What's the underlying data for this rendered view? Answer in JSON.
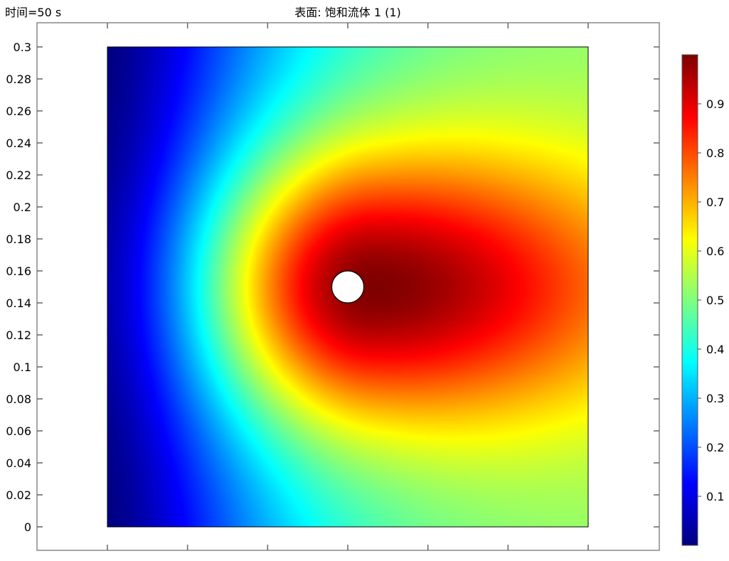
{
  "header": {
    "time_label": "时间=50 s",
    "title": "表面: 饱和流体 1 (1)"
  },
  "chart_data": {
    "type": "heatmap",
    "title": "表面: 饱和流体 1 (1)",
    "annotation": "时间=50 s",
    "xlim": [
      0,
      0.3
    ],
    "ylim": [
      0,
      0.3
    ],
    "x_ticks": [
      "0",
      "0.05",
      "0.1",
      "0.15",
      "0.2",
      "0.25",
      "0.3"
    ],
    "y_ticks": [
      "0",
      "0.02",
      "0.04",
      "0.06",
      "0.08",
      "0.1",
      "0.12",
      "0.14",
      "0.16",
      "0.18",
      "0.2",
      "0.22",
      "0.24",
      "0.26",
      "0.28",
      "0.3"
    ],
    "colormap": "jet",
    "color_range": [
      0,
      1
    ],
    "colorbar_ticks": [
      "0.1",
      "0.2",
      "0.3",
      "0.4",
      "0.5",
      "0.6",
      "0.7",
      "0.8",
      "0.9"
    ],
    "source_hole": {
      "center": [
        0.15,
        0.15
      ],
      "radius": 0.01
    },
    "field_description_values": {
      "peak": 1.0,
      "left_edge": 0.0,
      "right_edge_center": 0.75,
      "right_edge_corners": 0.5
    },
    "grid": false
  }
}
